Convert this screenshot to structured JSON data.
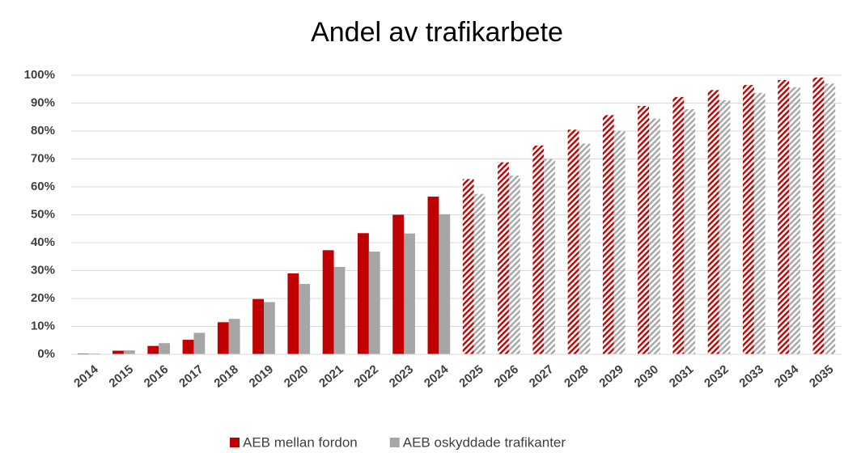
{
  "chart_data": {
    "type": "bar",
    "title": "Andel av trafikarbete",
    "categories": [
      "2014",
      "2015",
      "2016",
      "2017",
      "2018",
      "2019",
      "2020",
      "2021",
      "2022",
      "2023",
      "2024",
      "2025",
      "2026",
      "2027",
      "2028",
      "2029",
      "2030",
      "2031",
      "2032",
      "2033",
      "2034",
      "2035"
    ],
    "series": [
      {
        "name": "AEB mellan fordon",
        "color": "#c00000",
        "values": [
          0.3,
          1.3,
          3,
          5.2,
          11.5,
          19.8,
          29,
          37.3,
          43.4,
          50,
          56.5,
          62.8,
          68.8,
          74.8,
          80.5,
          85.7,
          89,
          92.2,
          94.7,
          96.5,
          98.3,
          99.2
        ]
      },
      {
        "name": "AEB oskyddade trafikanter",
        "color": "#a6a6a6",
        "values": [
          0.3,
          1.4,
          4,
          7.7,
          12.7,
          18.7,
          25.2,
          31.3,
          36.8,
          43.3,
          50.2,
          57.5,
          64,
          70,
          75.5,
          80,
          84.5,
          87.8,
          91,
          93.7,
          95.7,
          97
        ]
      }
    ],
    "hatch_from": "2025",
    "ylim": [
      0,
      100
    ],
    "yticks": [
      {
        "value": 0,
        "label": "0%"
      },
      {
        "value": 10,
        "label": "10%"
      },
      {
        "value": 20,
        "label": "20%"
      },
      {
        "value": 30,
        "label": "30%"
      },
      {
        "value": 40,
        "label": "40%"
      },
      {
        "value": 50,
        "label": "50%"
      },
      {
        "value": 60,
        "label": "60%"
      },
      {
        "value": 70,
        "label": "70%"
      },
      {
        "value": 80,
        "label": "80%"
      },
      {
        "value": 90,
        "label": "90%"
      },
      {
        "value": 100,
        "label": "100%"
      }
    ],
    "grid": true,
    "legend": "bottom"
  }
}
